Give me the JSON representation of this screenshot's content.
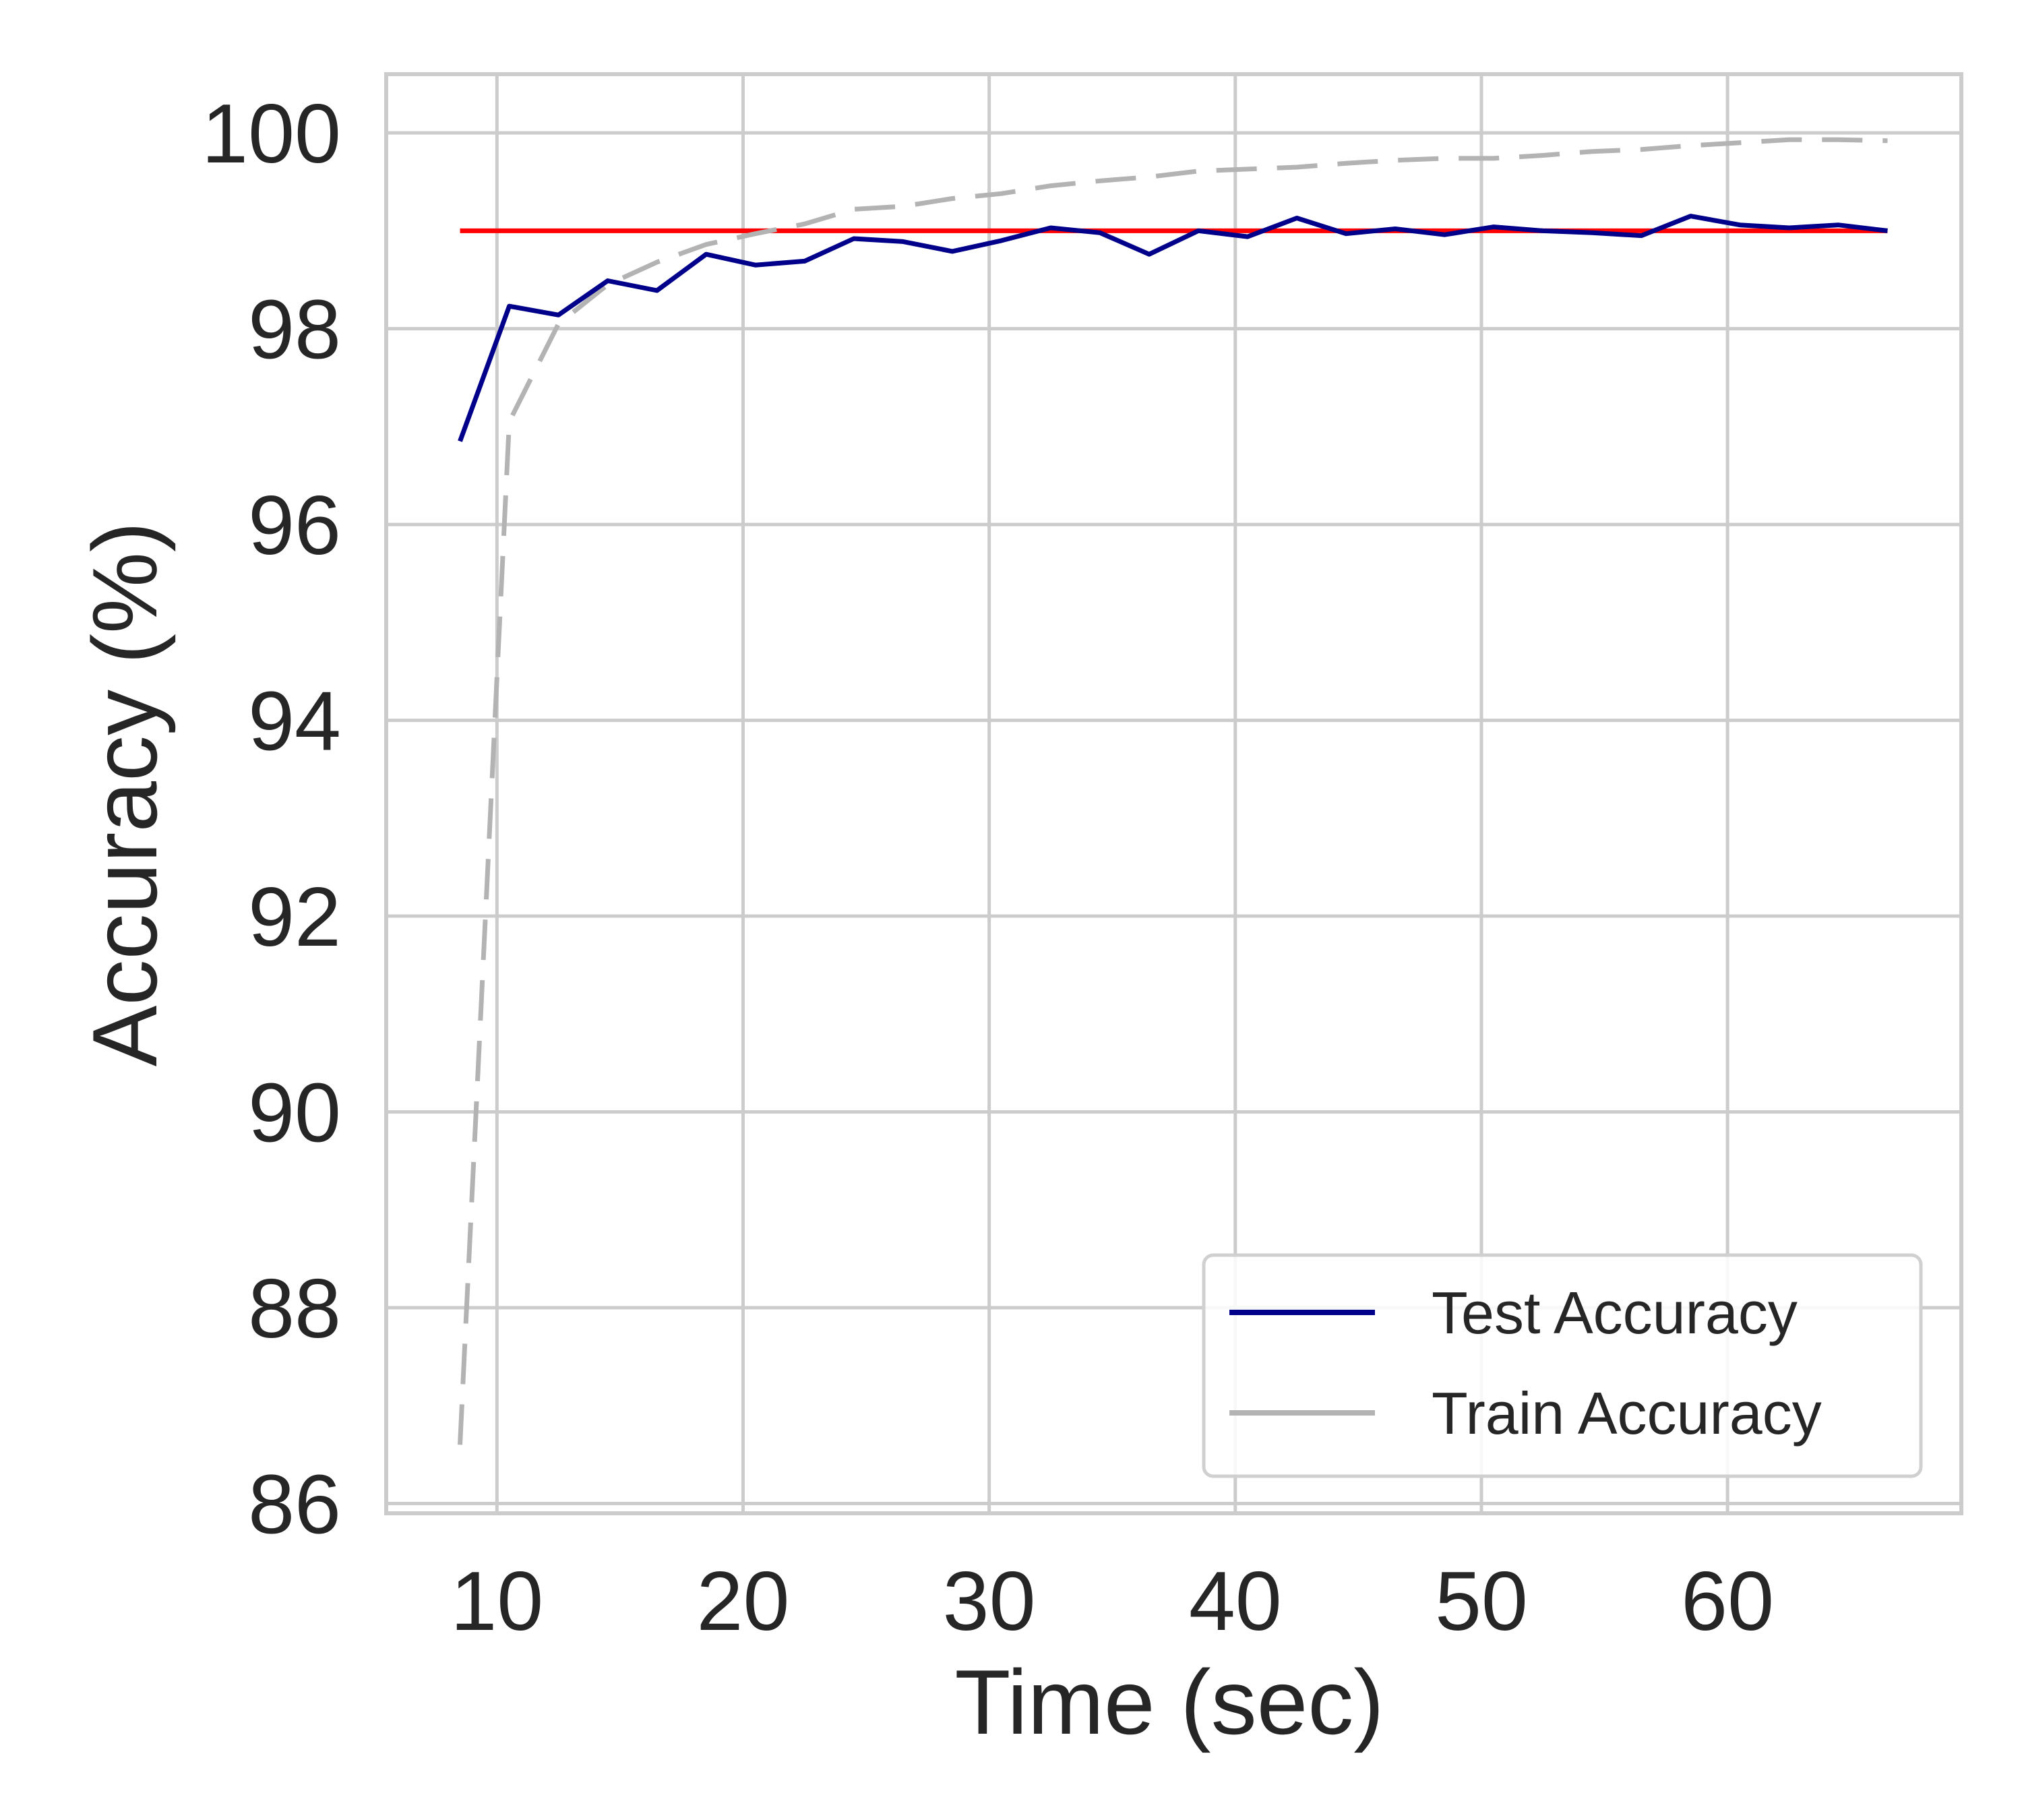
{
  "chart_data": {
    "type": "line",
    "title": "",
    "xlabel": "Time (sec)",
    "ylabel": "Accuracy (%)",
    "xlim": [
      5.5,
      69.5
    ],
    "ylim": [
      85.9,
      100.6
    ],
    "xticks": [
      10,
      20,
      30,
      40,
      50,
      60
    ],
    "yticks": [
      86,
      88,
      90,
      92,
      94,
      96,
      98,
      100
    ],
    "grid": true,
    "legend_position": "lower-right",
    "colors": {
      "test": "#00008b",
      "train": "#b3b3b3",
      "reference": "#ff0000",
      "grid": "#cccccc",
      "text": "#262626"
    },
    "reference_line": {
      "y": 99.0,
      "x_range": [
        8.5,
        66.5
      ]
    },
    "series": [
      {
        "name": "Test Accuracy",
        "style": "solid",
        "x": [
          8.5,
          10.5,
          12.5,
          14.5,
          16.5,
          18.5,
          20.5,
          22.5,
          24.5,
          26.5,
          28.5,
          30.5,
          32.5,
          34.5,
          36.5,
          38.5,
          40.5,
          42.5,
          44.5,
          46.5,
          48.5,
          50.5,
          52.5,
          54.5,
          56.5,
          58.5,
          60.5,
          62.5,
          64.5,
          66.5
        ],
        "y": [
          96.85,
          98.23,
          98.14,
          98.49,
          98.39,
          98.76,
          98.65,
          98.69,
          98.92,
          98.89,
          98.79,
          98.9,
          99.03,
          98.98,
          98.76,
          99.0,
          98.94,
          99.13,
          98.97,
          99.02,
          98.96,
          99.04,
          99.0,
          98.98,
          98.95,
          99.15,
          99.06,
          99.03,
          99.06,
          99.0
        ]
      },
      {
        "name": "Train Accuracy",
        "style": "dashed",
        "x": [
          8.5,
          10.5,
          12.5,
          14.5,
          16.5,
          18.5,
          20.5,
          22.5,
          24.5,
          26.5,
          28.5,
          30.5,
          32.5,
          34.5,
          36.5,
          38.5,
          40.5,
          42.5,
          44.5,
          46.5,
          48.5,
          50.5,
          52.5,
          54.5,
          56.5,
          58.5,
          60.5,
          62.5,
          64.5,
          66.5
        ],
        "y": [
          86.6,
          97.05,
          98.05,
          98.45,
          98.68,
          98.86,
          98.97,
          99.07,
          99.22,
          99.25,
          99.33,
          99.38,
          99.46,
          99.51,
          99.55,
          99.61,
          99.63,
          99.65,
          99.69,
          99.72,
          99.74,
          99.74,
          99.77,
          99.81,
          99.83,
          99.87,
          99.9,
          99.93,
          99.93,
          99.92
        ]
      }
    ]
  }
}
